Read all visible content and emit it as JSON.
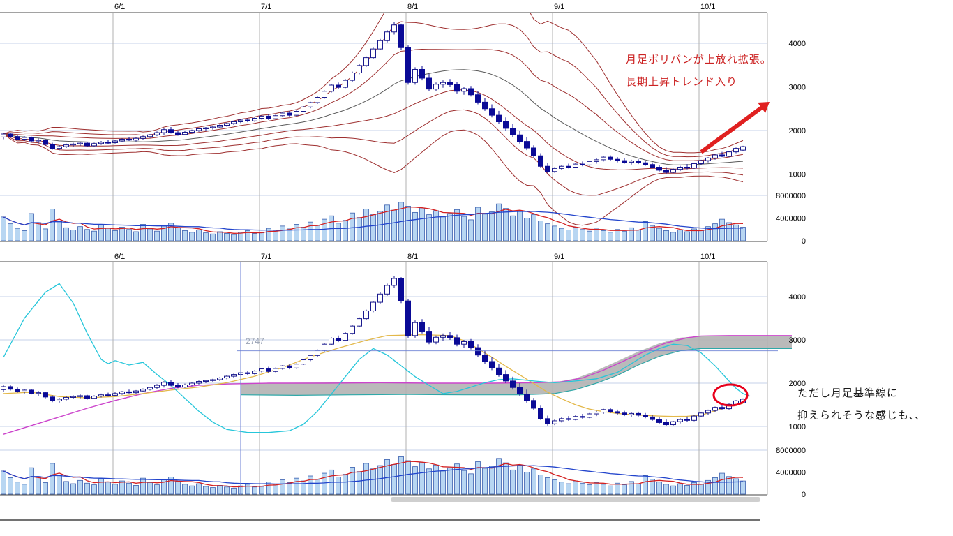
{
  "annotations": {
    "top_line1": "月足ボリバンが上放れ拡張。",
    "top_line2": "長期上昇トレンド入り",
    "bottom_line1": "ただし月足基準線に",
    "bottom_line2": "抑えられそうな感じも、、",
    "cursor_price_label": "2747",
    "cursor_price_value": 2747,
    "cursor_index": 34
  },
  "colors": {
    "candle_up_fill": "#ffffff",
    "candle_up_stroke": "#1a1a8e",
    "candle_down": "#0a0a96",
    "volume_bar_fill": "#b8d6f2",
    "volume_bar_stroke": "#3a5fae",
    "bollinger_band": "#9e2f2f",
    "bollinger_mid": "#5a5a5a",
    "vol_ma_fast": "#d42020",
    "vol_ma_slow": "#2244cc",
    "grid": "#c6d2e8",
    "month_line": "#b0b0b0",
    "border": "#444444",
    "cloud": "#b3b3b3",
    "magenta_line": "#cc44cc",
    "orange_line": "#e3b84a",
    "cyan_line": "#26c6da",
    "teal_line": "#2fa8a8",
    "cursor": "#6b7fd4",
    "annotation_red": "#cc2222",
    "annotation_black": "#1a1a1a",
    "arrow_red": "#e02020",
    "circle_red": "#e8001c",
    "cursor_label": "#9aa3b5",
    "scrollbar": "#cfcfcf",
    "axis_text": "#000000"
  },
  "chart_data": {
    "type": "candlestick",
    "panels": [
      {
        "name": "daily-candles-with-monthly-bollinger-bands",
        "overlays": [
          "bollinger_bands",
          "volume",
          "volume_ma"
        ]
      },
      {
        "name": "daily-candles-with-monthly-ichimoku",
        "overlays": [
          "ichimoku_cloud",
          "ichimoku_lines",
          "volume",
          "volume_ma"
        ]
      }
    ],
    "x_ticks": [
      {
        "label": "6/1",
        "index": 16
      },
      {
        "label": "7/1",
        "index": 37
      },
      {
        "label": "8/1",
        "index": 58
      },
      {
        "label": "9/1",
        "index": 79
      },
      {
        "label": "10/1",
        "index": 100
      }
    ],
    "price_axis": {
      "ticks": [
        4000,
        3000,
        2000,
        1000
      ],
      "min": 600,
      "max": 4700
    },
    "volume_axis": {
      "ticks": [
        8000000,
        4000000,
        0
      ],
      "unit": 1000000,
      "max": 8000000
    },
    "candles": [
      [
        1850,
        1950,
        1800,
        1920
      ],
      [
        1920,
        1950,
        1830,
        1860
      ],
      [
        1860,
        1900,
        1780,
        1800
      ],
      [
        1800,
        1870,
        1760,
        1840
      ],
      [
        1840,
        1860,
        1740,
        1760
      ],
      [
        1760,
        1820,
        1700,
        1780
      ],
      [
        1780,
        1800,
        1650,
        1680
      ],
      [
        1680,
        1720,
        1560,
        1590
      ],
      [
        1590,
        1660,
        1550,
        1630
      ],
      [
        1630,
        1700,
        1600,
        1670
      ],
      [
        1670,
        1720,
        1630,
        1690
      ],
      [
        1690,
        1740,
        1650,
        1710
      ],
      [
        1710,
        1730,
        1620,
        1650
      ],
      [
        1650,
        1720,
        1630,
        1700
      ],
      [
        1700,
        1760,
        1670,
        1730
      ],
      [
        1730,
        1780,
        1690,
        1720
      ],
      [
        1720,
        1790,
        1700,
        1760
      ],
      [
        1760,
        1820,
        1730,
        1800
      ],
      [
        1800,
        1850,
        1760,
        1780
      ],
      [
        1780,
        1840,
        1750,
        1820
      ],
      [
        1820,
        1880,
        1790,
        1860
      ],
      [
        1860,
        1920,
        1830,
        1900
      ],
      [
        1900,
        1980,
        1870,
        1950
      ],
      [
        1950,
        2050,
        1900,
        2020
      ],
      [
        2020,
        2080,
        1930,
        1950
      ],
      [
        1950,
        2000,
        1880,
        1910
      ],
      [
        1910,
        1990,
        1890,
        1960
      ],
      [
        1960,
        2020,
        1930,
        2000
      ],
      [
        2000,
        2060,
        1970,
        2040
      ],
      [
        2040,
        2080,
        2000,
        2060
      ],
      [
        2060,
        2100,
        2020,
        2080
      ],
      [
        2080,
        2140,
        2050,
        2120
      ],
      [
        2120,
        2180,
        2090,
        2160
      ],
      [
        2160,
        2220,
        2130,
        2200
      ],
      [
        2200,
        2260,
        2170,
        2240
      ],
      [
        2240,
        2280,
        2190,
        2220
      ],
      [
        2220,
        2300,
        2200,
        2280
      ],
      [
        2280,
        2350,
        2250,
        2330
      ],
      [
        2330,
        2380,
        2240,
        2270
      ],
      [
        2270,
        2360,
        2250,
        2340
      ],
      [
        2340,
        2420,
        2310,
        2400
      ],
      [
        2400,
        2450,
        2320,
        2350
      ],
      [
        2350,
        2460,
        2330,
        2440
      ],
      [
        2440,
        2560,
        2420,
        2540
      ],
      [
        2540,
        2660,
        2510,
        2640
      ],
      [
        2640,
        2780,
        2610,
        2760
      ],
      [
        2760,
        2920,
        2730,
        2900
      ],
      [
        2900,
        3060,
        2870,
        3040
      ],
      [
        3040,
        3100,
        2950,
        2990
      ],
      [
        2990,
        3180,
        2970,
        3150
      ],
      [
        3150,
        3350,
        3120,
        3320
      ],
      [
        3320,
        3520,
        3290,
        3490
      ],
      [
        3490,
        3700,
        3460,
        3670
      ],
      [
        3670,
        3900,
        3640,
        3870
      ],
      [
        3870,
        4100,
        3840,
        4060
      ],
      [
        4060,
        4300,
        4020,
        4260
      ],
      [
        4260,
        4480,
        4200,
        4420
      ],
      [
        4420,
        4450,
        3850,
        3900
      ],
      [
        3900,
        3950,
        3050,
        3100
      ],
      [
        3100,
        3450,
        3050,
        3400
      ],
      [
        3400,
        3480,
        3150,
        3200
      ],
      [
        3200,
        3300,
        2900,
        2950
      ],
      [
        2950,
        3100,
        2900,
        3060
      ],
      [
        3060,
        3150,
        2980,
        3100
      ],
      [
        3100,
        3180,
        3000,
        3050
      ],
      [
        3050,
        3120,
        2850,
        2900
      ],
      [
        2900,
        3000,
        2820,
        2960
      ],
      [
        2960,
        3020,
        2780,
        2820
      ],
      [
        2820,
        2900,
        2600,
        2650
      ],
      [
        2650,
        2750,
        2450,
        2500
      ],
      [
        2500,
        2600,
        2300,
        2350
      ],
      [
        2350,
        2450,
        2150,
        2200
      ],
      [
        2200,
        2300,
        2000,
        2050
      ],
      [
        2050,
        2150,
        1850,
        1900
      ],
      [
        1900,
        2000,
        1700,
        1750
      ],
      [
        1750,
        1850,
        1550,
        1600
      ],
      [
        1600,
        1660,
        1380,
        1420
      ],
      [
        1420,
        1480,
        1150,
        1180
      ],
      [
        1180,
        1250,
        1020,
        1060
      ],
      [
        1060,
        1160,
        1030,
        1130
      ],
      [
        1130,
        1210,
        1090,
        1180
      ],
      [
        1180,
        1240,
        1130,
        1160
      ],
      [
        1160,
        1260,
        1140,
        1230
      ],
      [
        1230,
        1290,
        1180,
        1210
      ],
      [
        1210,
        1310,
        1190,
        1290
      ],
      [
        1290,
        1360,
        1240,
        1330
      ],
      [
        1330,
        1410,
        1290,
        1390
      ],
      [
        1390,
        1430,
        1310,
        1340
      ],
      [
        1340,
        1390,
        1270,
        1310
      ],
      [
        1310,
        1360,
        1240,
        1270
      ],
      [
        1270,
        1330,
        1220,
        1300
      ],
      [
        1300,
        1340,
        1230,
        1260
      ],
      [
        1260,
        1310,
        1190,
        1220
      ],
      [
        1220,
        1270,
        1130,
        1160
      ],
      [
        1160,
        1210,
        1060,
        1090
      ],
      [
        1090,
        1160,
        1010,
        1040
      ],
      [
        1040,
        1130,
        1020,
        1110
      ],
      [
        1110,
        1190,
        1070,
        1160
      ],
      [
        1160,
        1230,
        1110,
        1140
      ],
      [
        1140,
        1260,
        1120,
        1240
      ],
      [
        1240,
        1330,
        1210,
        1310
      ],
      [
        1310,
        1390,
        1270,
        1370
      ],
      [
        1370,
        1460,
        1330,
        1440
      ],
      [
        1440,
        1510,
        1390,
        1410
      ],
      [
        1410,
        1530,
        1390,
        1510
      ],
      [
        1510,
        1610,
        1480,
        1590
      ],
      [
        1550,
        1650,
        1530,
        1630
      ]
    ],
    "volume_millions": [
      4.2,
      3.0,
      2.2,
      1.8,
      4.8,
      3.2,
      2.1,
      5.6,
      3.4,
      2.3,
      1.9,
      2.5,
      2.0,
      1.7,
      2.8,
      2.2,
      1.8,
      2.4,
      2.0,
      1.6,
      2.9,
      2.1,
      1.7,
      2.6,
      3.1,
      2.3,
      1.8,
      1.5,
      1.9,
      1.4,
      1.2,
      1.6,
      1.3,
      1.1,
      1.5,
      1.8,
      1.3,
      1.4,
      2.2,
      1.7,
      2.6,
      2.1,
      2.9,
      2.4,
      3.3,
      2.7,
      3.8,
      4.4,
      3.1,
      3.6,
      4.9,
      4.1,
      5.6,
      4.6,
      5.2,
      6.3,
      5.4,
      6.8,
      6.1,
      5.0,
      5.8,
      4.6,
      5.3,
      4.2,
      4.8,
      5.5,
      4.3,
      3.7,
      5.9,
      4.7,
      5.1,
      6.5,
      5.7,
      4.4,
      5.3,
      4.0,
      4.6,
      3.5,
      3.0,
      2.6,
      2.2,
      1.9,
      2.4,
      2.0,
      1.7,
      2.1,
      1.8,
      1.5,
      2.0,
      1.7,
      2.3,
      1.9,
      3.4,
      2.7,
      2.2,
      1.8,
      1.5,
      1.9,
      1.6,
      2.1,
      1.8,
      2.5,
      3.0,
      3.8,
      3.2,
      2.8,
      2.4
    ],
    "bollinger": {
      "window": 20,
      "sigmas": [
        1,
        2,
        3
      ]
    },
    "volume_ma": {
      "fast_window": 5,
      "slow_window": 25
    },
    "ichimoku": {
      "cloud": {
        "top": [
          [
            34,
            2000
          ],
          [
            42,
            2010
          ],
          [
            50,
            2020
          ],
          [
            58,
            2010
          ],
          [
            66,
            2000
          ],
          [
            74,
            2000
          ],
          [
            79,
            2020
          ],
          [
            82,
            2110
          ],
          [
            85,
            2290
          ],
          [
            88,
            2510
          ],
          [
            91,
            2730
          ],
          [
            94,
            2920
          ],
          [
            97,
            3050
          ],
          [
            100,
            3090
          ],
          [
            113,
            3100
          ]
        ],
        "bottom": [
          [
            34,
            1730
          ],
          [
            42,
            1720
          ],
          [
            50,
            1730
          ],
          [
            58,
            1740
          ],
          [
            66,
            1730
          ],
          [
            74,
            1730
          ],
          [
            79,
            1760
          ],
          [
            82,
            1850
          ],
          [
            85,
            2000
          ],
          [
            88,
            2180
          ],
          [
            91,
            2420
          ],
          [
            94,
            2620
          ],
          [
            97,
            2750
          ],
          [
            100,
            2800
          ],
          [
            113,
            2800
          ]
        ]
      },
      "lines": {
        "magenta": [
          [
            0,
            820
          ],
          [
            4,
            1020
          ],
          [
            8,
            1220
          ],
          [
            12,
            1420
          ],
          [
            16,
            1600
          ],
          [
            20,
            1760
          ],
          [
            24,
            1880
          ],
          [
            28,
            1950
          ],
          [
            32,
            1980
          ],
          [
            38,
            2000
          ],
          [
            46,
            2000
          ],
          [
            54,
            2010
          ],
          [
            62,
            2000
          ],
          [
            70,
            2000
          ],
          [
            76,
            2010
          ],
          [
            80,
            2030
          ],
          [
            83,
            2120
          ],
          [
            86,
            2300
          ],
          [
            89,
            2520
          ],
          [
            92,
            2740
          ],
          [
            95,
            2930
          ],
          [
            98,
            3050
          ],
          [
            100,
            3090
          ],
          [
            104,
            3100
          ],
          [
            113,
            3100
          ]
        ],
        "orange": [
          [
            0,
            1760
          ],
          [
            4,
            1790
          ],
          [
            8,
            1690
          ],
          [
            12,
            1660
          ],
          [
            16,
            1690
          ],
          [
            20,
            1760
          ],
          [
            24,
            1840
          ],
          [
            28,
            1910
          ],
          [
            32,
            2010
          ],
          [
            36,
            2160
          ],
          [
            40,
            2360
          ],
          [
            44,
            2610
          ],
          [
            48,
            2810
          ],
          [
            52,
            2990
          ],
          [
            55,
            3100
          ],
          [
            60,
            3120
          ],
          [
            64,
            3100
          ],
          [
            66,
            2980
          ],
          [
            68,
            2800
          ],
          [
            70,
            2600
          ],
          [
            72,
            2390
          ],
          [
            74,
            2190
          ],
          [
            76,
            1990
          ],
          [
            78,
            1790
          ],
          [
            80,
            1640
          ],
          [
            82,
            1500
          ],
          [
            84,
            1400
          ],
          [
            86,
            1340
          ],
          [
            88,
            1300
          ],
          [
            90,
            1275
          ],
          [
            92,
            1255
          ],
          [
            94,
            1240
          ],
          [
            96,
            1230
          ],
          [
            98,
            1235
          ],
          [
            100,
            1260
          ],
          [
            102,
            1360
          ],
          [
            104,
            1460
          ],
          [
            106,
            1530
          ]
        ],
        "cyan": [
          [
            0,
            2600
          ],
          [
            3,
            3500
          ],
          [
            6,
            4100
          ],
          [
            8,
            4300
          ],
          [
            10,
            3850
          ],
          [
            12,
            3150
          ],
          [
            14,
            2550
          ],
          [
            15,
            2450
          ],
          [
            16,
            2520
          ],
          [
            18,
            2420
          ],
          [
            20,
            2480
          ],
          [
            22,
            2200
          ],
          [
            24,
            1950
          ],
          [
            26,
            1650
          ],
          [
            28,
            1350
          ],
          [
            30,
            1100
          ],
          [
            32,
            930
          ],
          [
            35,
            860
          ],
          [
            38,
            860
          ],
          [
            41,
            900
          ],
          [
            43,
            1050
          ],
          [
            45,
            1350
          ],
          [
            47,
            1750
          ],
          [
            49,
            2150
          ],
          [
            51,
            2550
          ],
          [
            53,
            2800
          ],
          [
            55,
            2650
          ],
          [
            57,
            2400
          ],
          [
            59,
            2150
          ],
          [
            61,
            1950
          ],
          [
            63,
            1760
          ],
          [
            65,
            1810
          ],
          [
            67,
            1910
          ],
          [
            69,
            2010
          ],
          [
            71,
            2080
          ],
          [
            73,
            2100
          ],
          [
            76,
            2050
          ],
          [
            79,
            2010
          ],
          [
            82,
            2050
          ],
          [
            85,
            2100
          ],
          [
            88,
            2250
          ],
          [
            90,
            2450
          ],
          [
            92,
            2650
          ],
          [
            94,
            2800
          ],
          [
            96,
            2900
          ],
          [
            98,
            2870
          ],
          [
            100,
            2700
          ],
          [
            102,
            2400
          ],
          [
            104,
            2050
          ],
          [
            105,
            1880
          ],
          [
            106,
            1760
          ],
          [
            107,
            1700
          ]
        ]
      }
    }
  }
}
